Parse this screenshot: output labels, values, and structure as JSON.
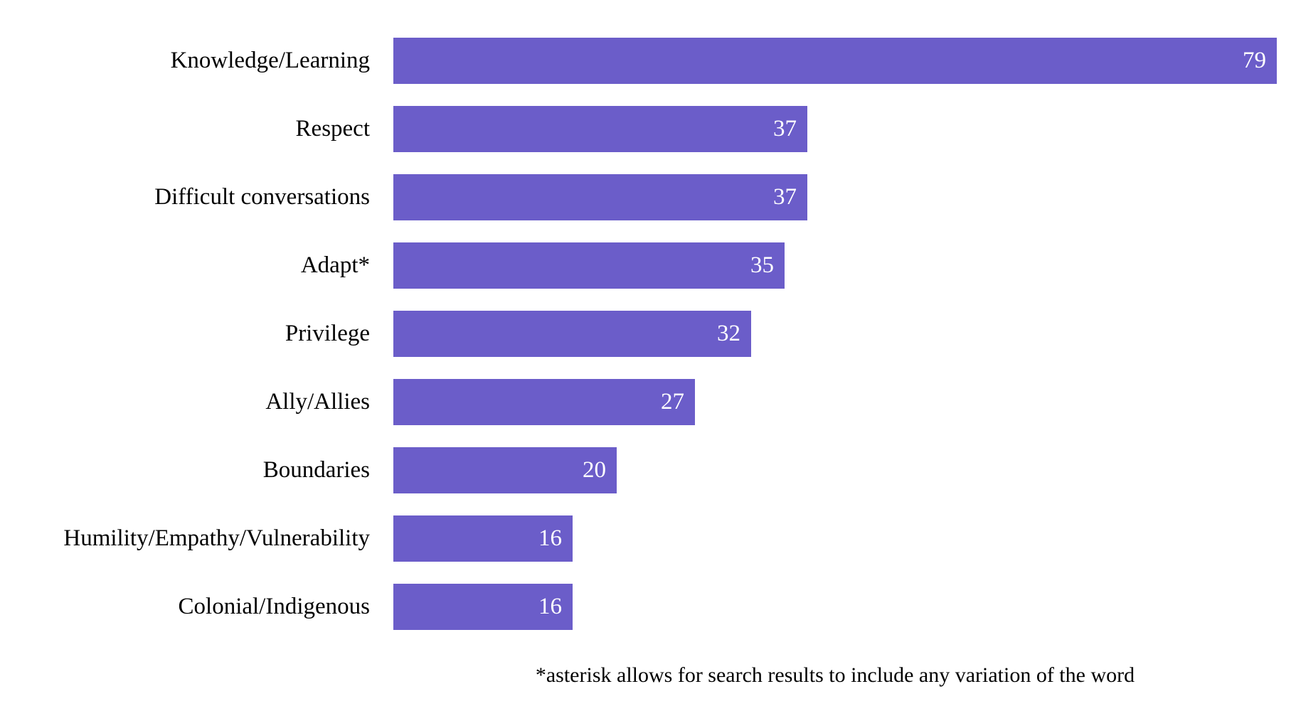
{
  "chart_data": {
    "type": "bar",
    "orientation": "horizontal",
    "title": "",
    "xlabel": "",
    "ylabel": "",
    "xlim": [
      0,
      79
    ],
    "grid": false,
    "categories": [
      "Knowledge/Learning",
      "Respect",
      "Difficult conversations",
      "Adapt*",
      "Privilege",
      "Ally/Allies",
      "Boundaries",
      "Humility/Empathy/Vulnerability",
      "Colonial/Indigenous"
    ],
    "values": [
      79,
      37,
      37,
      35,
      32,
      27,
      20,
      16,
      16
    ],
    "value_labels_position": "inside-end",
    "footnote": "*asterisk allows for search results to include any variation of the word"
  },
  "colors": {
    "bar": "#6B5DC9",
    "value_text": "#FFFFFF",
    "label_text": "#000000",
    "background": "#FFFFFF"
  }
}
